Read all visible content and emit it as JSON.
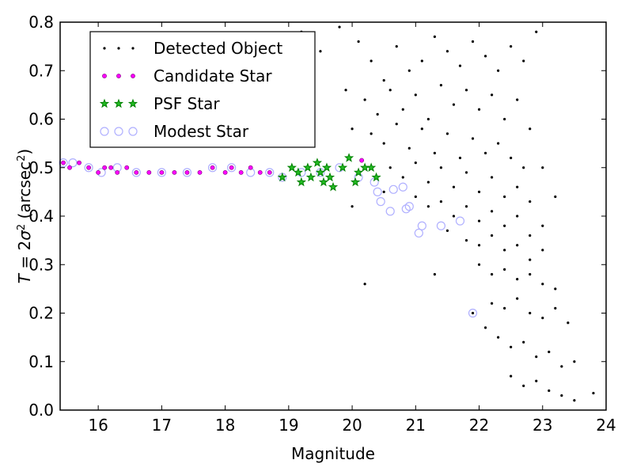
{
  "chart_data": {
    "type": "scatter",
    "xlabel": "Magnitude",
    "ylabel_parts": {
      "lhs": "T",
      "eq": " = 2",
      "sigma": "σ",
      "sup": "2",
      "unit_open": " (arcsec",
      "unit_sup": "2",
      "unit_close": ")"
    },
    "xlim": [
      15.4,
      24
    ],
    "ylim": [
      0,
      0.8
    ],
    "xticks": [
      "16",
      "17",
      "18",
      "19",
      "20",
      "21",
      "22",
      "23",
      "24"
    ],
    "yticks": [
      "0.0",
      "0.1",
      "0.2",
      "0.3",
      "0.4",
      "0.5",
      "0.6",
      "0.7",
      "0.8"
    ],
    "grid": false,
    "legend_placement": "top-left",
    "colors": {
      "detected": "#000000",
      "candidate": "#ff00ff",
      "psf": "#008000",
      "modest": "#b0b0ff"
    },
    "series": [
      {
        "name": "Detected Object",
        "marker": "dot",
        "points": [
          [
            20.1,
            0.76
          ],
          [
            20.3,
            0.72
          ],
          [
            20.5,
            0.68
          ],
          [
            20.7,
            0.75
          ],
          [
            20.9,
            0.7
          ],
          [
            21.1,
            0.72
          ],
          [
            21.3,
            0.77
          ],
          [
            21.5,
            0.74
          ],
          [
            21.7,
            0.71
          ],
          [
            21.9,
            0.76
          ],
          [
            22.1,
            0.73
          ],
          [
            22.3,
            0.7
          ],
          [
            22.5,
            0.75
          ],
          [
            22.7,
            0.72
          ],
          [
            22.9,
            0.78
          ],
          [
            20.2,
            0.64
          ],
          [
            20.4,
            0.61
          ],
          [
            20.6,
            0.66
          ],
          [
            20.8,
            0.62
          ],
          [
            21.0,
            0.65
          ],
          [
            21.2,
            0.6
          ],
          [
            21.4,
            0.67
          ],
          [
            21.6,
            0.63
          ],
          [
            21.8,
            0.66
          ],
          [
            22.0,
            0.62
          ],
          [
            22.2,
            0.65
          ],
          [
            22.4,
            0.6
          ],
          [
            22.6,
            0.64
          ],
          [
            22.8,
            0.58
          ],
          [
            20.3,
            0.57
          ],
          [
            20.5,
            0.55
          ],
          [
            20.7,
            0.59
          ],
          [
            20.9,
            0.54
          ],
          [
            21.1,
            0.58
          ],
          [
            21.3,
            0.53
          ],
          [
            21.5,
            0.57
          ],
          [
            21.7,
            0.52
          ],
          [
            21.9,
            0.56
          ],
          [
            22.1,
            0.53
          ],
          [
            22.3,
            0.55
          ],
          [
            22.5,
            0.52
          ],
          [
            22.7,
            0.5
          ],
          [
            20.6,
            0.5
          ],
          [
            20.8,
            0.48
          ],
          [
            21.0,
            0.51
          ],
          [
            21.2,
            0.47
          ],
          [
            21.4,
            0.5
          ],
          [
            21.6,
            0.46
          ],
          [
            21.8,
            0.49
          ],
          [
            22.0,
            0.45
          ],
          [
            22.2,
            0.48
          ],
          [
            22.4,
            0.44
          ],
          [
            22.6,
            0.46
          ],
          [
            22.8,
            0.43
          ],
          [
            21.0,
            0.44
          ],
          [
            21.2,
            0.42
          ],
          [
            21.4,
            0.43
          ],
          [
            21.6,
            0.4
          ],
          [
            21.8,
            0.42
          ],
          [
            22.0,
            0.39
          ],
          [
            22.2,
            0.41
          ],
          [
            22.4,
            0.38
          ],
          [
            22.6,
            0.4
          ],
          [
            22.8,
            0.36
          ],
          [
            23.0,
            0.38
          ],
          [
            21.5,
            0.37
          ],
          [
            21.8,
            0.35
          ],
          [
            22.0,
            0.34
          ],
          [
            22.2,
            0.36
          ],
          [
            22.4,
            0.33
          ],
          [
            22.6,
            0.34
          ],
          [
            22.8,
            0.31
          ],
          [
            23.0,
            0.33
          ],
          [
            22.0,
            0.3
          ],
          [
            22.2,
            0.28
          ],
          [
            22.4,
            0.29
          ],
          [
            22.6,
            0.27
          ],
          [
            22.8,
            0.28
          ],
          [
            23.0,
            0.26
          ],
          [
            23.2,
            0.25
          ],
          [
            22.2,
            0.22
          ],
          [
            22.4,
            0.21
          ],
          [
            22.6,
            0.23
          ],
          [
            22.8,
            0.2
          ],
          [
            23.0,
            0.19
          ],
          [
            23.2,
            0.21
          ],
          [
            23.4,
            0.18
          ],
          [
            22.3,
            0.15
          ],
          [
            22.5,
            0.13
          ],
          [
            22.7,
            0.14
          ],
          [
            22.9,
            0.11
          ],
          [
            23.1,
            0.12
          ],
          [
            23.3,
            0.09
          ],
          [
            23.5,
            0.1
          ],
          [
            22.5,
            0.07
          ],
          [
            22.7,
            0.05
          ],
          [
            22.9,
            0.06
          ],
          [
            23.1,
            0.04
          ],
          [
            23.3,
            0.03
          ],
          [
            23.5,
            0.02
          ],
          [
            23.8,
            0.035
          ],
          [
            22.1,
            0.17
          ],
          [
            21.9,
            0.2
          ],
          [
            23.2,
            0.44
          ],
          [
            23.0,
            0.5
          ],
          [
            20.0,
            0.42
          ],
          [
            20.5,
            0.45
          ],
          [
            20.2,
            0.26
          ],
          [
            21.3,
            0.28
          ],
          [
            19.5,
            0.74
          ],
          [
            19.8,
            0.79
          ],
          [
            20.0,
            0.58
          ],
          [
            19.9,
            0.66
          ],
          [
            19.2,
            0.78
          ]
        ]
      },
      {
        "name": "Candidate Star",
        "marker": "pink-dot",
        "points": [
          [
            15.45,
            0.51
          ],
          [
            15.55,
            0.5
          ],
          [
            15.7,
            0.51
          ],
          [
            15.85,
            0.5
          ],
          [
            16.0,
            0.49
          ],
          [
            16.1,
            0.5
          ],
          [
            16.2,
            0.5
          ],
          [
            16.3,
            0.49
          ],
          [
            16.45,
            0.5
          ],
          [
            16.6,
            0.49
          ],
          [
            16.8,
            0.49
          ],
          [
            17.0,
            0.49
          ],
          [
            17.2,
            0.49
          ],
          [
            17.4,
            0.49
          ],
          [
            17.6,
            0.49
          ],
          [
            17.8,
            0.5
          ],
          [
            18.0,
            0.49
          ],
          [
            18.1,
            0.5
          ],
          [
            18.25,
            0.49
          ],
          [
            18.4,
            0.5
          ],
          [
            18.55,
            0.49
          ],
          [
            18.7,
            0.49
          ],
          [
            20.15,
            0.515
          ]
        ]
      },
      {
        "name": "PSF Star",
        "marker": "star",
        "points": [
          [
            18.9,
            0.48
          ],
          [
            19.05,
            0.5
          ],
          [
            19.15,
            0.49
          ],
          [
            19.2,
            0.47
          ],
          [
            19.3,
            0.5
          ],
          [
            19.35,
            0.48
          ],
          [
            19.45,
            0.51
          ],
          [
            19.5,
            0.49
          ],
          [
            19.55,
            0.47
          ],
          [
            19.6,
            0.5
          ],
          [
            19.65,
            0.48
          ],
          [
            19.7,
            0.46
          ],
          [
            19.85,
            0.5
          ],
          [
            19.95,
            0.52
          ],
          [
            20.05,
            0.47
          ],
          [
            20.1,
            0.49
          ],
          [
            20.2,
            0.5
          ],
          [
            20.3,
            0.5
          ],
          [
            20.38,
            0.48
          ]
        ]
      },
      {
        "name": "Modest Star",
        "marker": "ring",
        "points": [
          [
            15.45,
            0.51
          ],
          [
            15.6,
            0.51
          ],
          [
            15.85,
            0.5
          ],
          [
            16.05,
            0.49
          ],
          [
            16.3,
            0.5
          ],
          [
            16.6,
            0.49
          ],
          [
            17.0,
            0.49
          ],
          [
            17.4,
            0.49
          ],
          [
            17.8,
            0.5
          ],
          [
            18.1,
            0.5
          ],
          [
            18.4,
            0.49
          ],
          [
            18.7,
            0.49
          ],
          [
            18.9,
            0.48
          ],
          [
            19.2,
            0.49
          ],
          [
            19.5,
            0.49
          ],
          [
            19.8,
            0.5
          ],
          [
            20.1,
            0.48
          ],
          [
            20.35,
            0.47
          ],
          [
            20.4,
            0.45
          ],
          [
            20.45,
            0.43
          ],
          [
            20.6,
            0.41
          ],
          [
            20.65,
            0.455
          ],
          [
            20.8,
            0.46
          ],
          [
            20.85,
            0.415
          ],
          [
            20.9,
            0.42
          ],
          [
            21.05,
            0.365
          ],
          [
            21.1,
            0.38
          ],
          [
            21.4,
            0.38
          ],
          [
            21.7,
            0.39
          ],
          [
            21.9,
            0.2
          ]
        ]
      }
    ]
  }
}
